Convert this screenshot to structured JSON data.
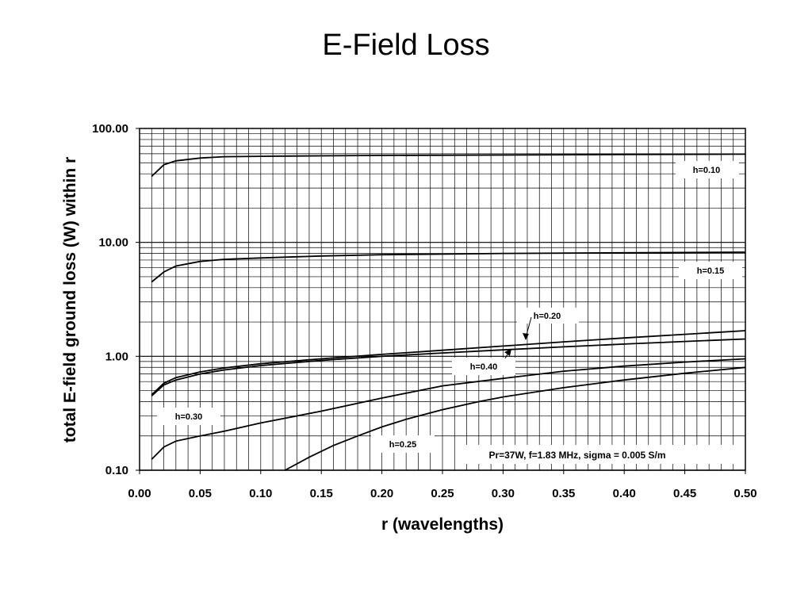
{
  "chart_data": {
    "type": "line",
    "title": "E-Field Loss",
    "xlabel": "r (wavelengths)",
    "ylabel": "total E-field ground loss (W) within r",
    "xlim": [
      0,
      0.5
    ],
    "ylim": [
      0.1,
      100
    ],
    "yscale": "log",
    "grid": true,
    "x_ticks": [
      "0.00",
      "0.05",
      "0.10",
      "0.15",
      "0.20",
      "0.25",
      "0.30",
      "0.35",
      "0.40",
      "0.45",
      "0.50"
    ],
    "y_ticks": [
      "100.00",
      "10.00",
      "1.00",
      "0.10"
    ],
    "annotation": "Pr=37W, f=1.83 MHz, sigma = 0.005 S/m",
    "series": [
      {
        "name": "h=0.10",
        "x": [
          0.01,
          0.02,
          0.03,
          0.05,
          0.07,
          0.1,
          0.15,
          0.2,
          0.3,
          0.4,
          0.5
        ],
        "y": [
          38,
          48,
          52,
          55,
          56.5,
          57,
          57.5,
          58,
          58.5,
          59,
          59.5
        ]
      },
      {
        "name": "h=0.15",
        "x": [
          0.01,
          0.02,
          0.03,
          0.05,
          0.07,
          0.1,
          0.15,
          0.2,
          0.3,
          0.4,
          0.5
        ],
        "y": [
          4.5,
          5.5,
          6.2,
          6.8,
          7.1,
          7.3,
          7.6,
          7.8,
          8.0,
          8.1,
          8.2
        ]
      },
      {
        "name": "h=0.20",
        "x": [
          0.01,
          0.02,
          0.03,
          0.05,
          0.07,
          0.1,
          0.15,
          0.2,
          0.25,
          0.3,
          0.35,
          0.4,
          0.45,
          0.5
        ],
        "y": [
          0.46,
          0.58,
          0.65,
          0.73,
          0.79,
          0.86,
          0.95,
          1.04,
          1.13,
          1.23,
          1.34,
          1.45,
          1.56,
          1.68
        ]
      },
      {
        "name": "h=0.40",
        "x": [
          0.01,
          0.02,
          0.03,
          0.05,
          0.07,
          0.1,
          0.15,
          0.2,
          0.25,
          0.3,
          0.35,
          0.4,
          0.45,
          0.5
        ],
        "y": [
          0.45,
          0.56,
          0.62,
          0.7,
          0.76,
          0.83,
          0.92,
          1.0,
          1.07,
          1.14,
          1.21,
          1.28,
          1.35,
          1.42
        ]
      },
      {
        "name": "h=0.30",
        "x": [
          0.01,
          0.02,
          0.03,
          0.05,
          0.07,
          0.1,
          0.15,
          0.2,
          0.25,
          0.3,
          0.35,
          0.4,
          0.45,
          0.5
        ],
        "y": [
          0.125,
          0.16,
          0.18,
          0.2,
          0.22,
          0.26,
          0.33,
          0.43,
          0.55,
          0.64,
          0.74,
          0.82,
          0.89,
          0.95
        ]
      },
      {
        "name": "h=0.25",
        "x": [
          0.12,
          0.14,
          0.16,
          0.18,
          0.2,
          0.22,
          0.25,
          0.28,
          0.3,
          0.35,
          0.4,
          0.45,
          0.5
        ],
        "y": [
          0.1,
          0.13,
          0.165,
          0.2,
          0.24,
          0.28,
          0.34,
          0.4,
          0.44,
          0.53,
          0.62,
          0.71,
          0.8
        ]
      }
    ]
  }
}
